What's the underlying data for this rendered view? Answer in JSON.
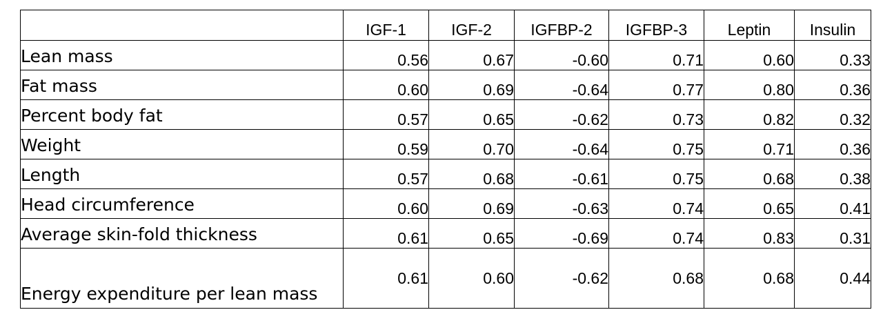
{
  "table": {
    "headers": [
      "",
      "IGF-1",
      "IGF-2",
      "IGFBP-2",
      "IGFBP-3",
      "Leptin",
      "Insulin"
    ],
    "rows": [
      {
        "label": "Lean mass",
        "values": [
          "0.56",
          "0.67",
          "-0.60",
          "0.71",
          "0.60",
          "0.33"
        ]
      },
      {
        "label": "Fat mass",
        "values": [
          "0.60",
          "0.69",
          "-0.64",
          "0.77",
          "0.80",
          "0.36"
        ]
      },
      {
        "label": "Percent body fat",
        "values": [
          "0.57",
          "0.65",
          "-0.62",
          "0.73",
          "0.82",
          "0.32"
        ]
      },
      {
        "label": "Weight",
        "values": [
          "0.59",
          "0.70",
          "-0.64",
          "0.75",
          "0.71",
          "0.36"
        ]
      },
      {
        "label": "Length",
        "values": [
          "0.57",
          "0.68",
          "-0.61",
          "0.75",
          "0.68",
          "0.38"
        ]
      },
      {
        "label": "Head circumference",
        "values": [
          "0.60",
          "0.69",
          "-0.63",
          "0.74",
          "0.65",
          "0.41"
        ]
      },
      {
        "label": "Average skin-fold thickness",
        "values": [
          "0.61",
          "0.65",
          "-0.69",
          "0.74",
          "0.83",
          "0.31"
        ]
      },
      {
        "label": "Energy expenditure per lean mass",
        "values": [
          "0.61",
          "0.60",
          "-0.62",
          "0.68",
          "0.68",
          "0.44"
        ]
      }
    ]
  }
}
